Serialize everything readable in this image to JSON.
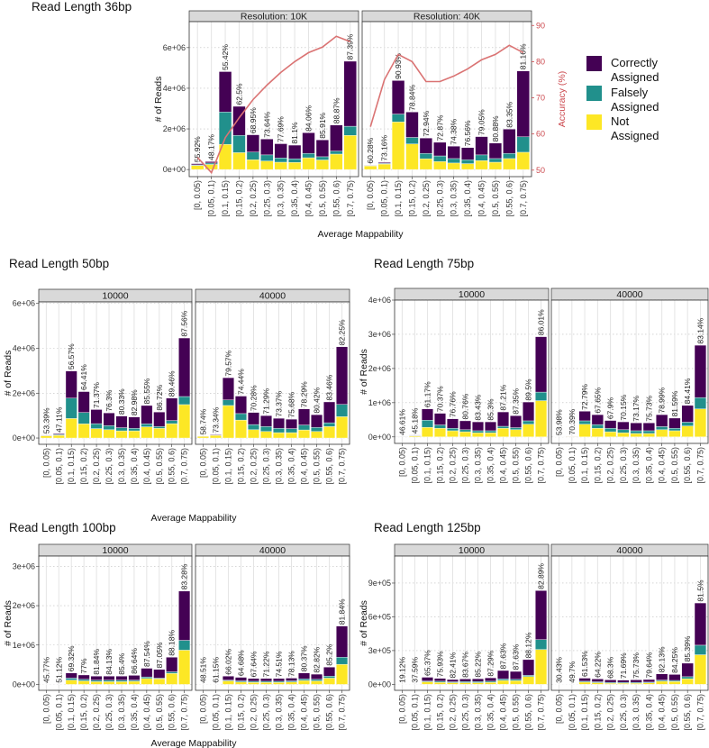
{
  "colors": {
    "correctly_assigned": "#440154",
    "falsely_assigned": "#21908C",
    "not_assigned": "#FDE725",
    "accuracy_line": "#DA7373",
    "accuracy_axis": "#CC4A4F"
  },
  "legend": {
    "items": [
      {
        "key": "correctly_assigned",
        "line1": "Correctly",
        "line2": "Assigned"
      },
      {
        "key": "falsely_assigned",
        "line1": "Falsely",
        "line2": "Assigned"
      },
      {
        "key": "not_assigned",
        "line1": "Not",
        "line2": "Assigned"
      }
    ]
  },
  "chart_data": [
    {
      "type": "bar",
      "stacked": true,
      "title": "Read Length 36bp",
      "xlabel": "Average Mappability",
      "ylabel": "# of Reads",
      "y2label": "Accuracy (%)",
      "ylim": [
        -0.35,
        7.28
      ],
      "y2lim": [
        48.2,
        91.06
      ],
      "yticks": [
        0,
        2,
        4,
        6
      ],
      "ytick_labels": [
        "0e+00",
        "2e+06",
        "4e+06",
        "6e+06"
      ],
      "y2ticks": [
        50,
        60,
        70,
        80,
        90
      ],
      "y2tick_labels": [
        "50",
        "60",
        "70",
        "80",
        "90"
      ],
      "values_in_millions": true,
      "categories": [
        "[0, 0.05)",
        "[0.05, 0.1)",
        "[0.1, 0.15)",
        "[0.15, 0.2)",
        "[0.2, 0.25)",
        "[0.25, 0.3)",
        "[0.3, 0.35)",
        "[0.35, 0.4)",
        "[0.4, 0.45)",
        "[0.5, 0.55)",
        "[0.55, 0.6)",
        "[0.7, 0.75)"
      ],
      "facets": [
        {
          "label": "Resolution: 10K",
          "not_assigned": [
            0.2,
            0.25,
            1.24,
            0.83,
            0.48,
            0.42,
            0.36,
            0.35,
            0.58,
            0.47,
            0.76,
            1.68
          ],
          "falsely_assigned": [
            0.03,
            0.07,
            1.59,
            0.85,
            0.38,
            0.3,
            0.21,
            0.18,
            0.21,
            0.16,
            0.15,
            0.45
          ],
          "correctly_assigned": [
            0.06,
            0.07,
            1.99,
            1.43,
            0.85,
            0.78,
            0.7,
            0.67,
            1.02,
            0.83,
            1.28,
            3.2
          ],
          "accuracy": [
            53.5,
            49.3,
            59,
            64.5,
            69.5,
            73.5,
            77,
            80,
            82.5,
            84,
            87,
            85.5
          ],
          "percent_labels": [
            "55.92%",
            "48.17%",
            "55.42%",
            "62.5%",
            "68.95%",
            "73.64%",
            "77.69%",
            "81.1%",
            "84.06%",
            "85.91%",
            "88.87%",
            "87.39%"
          ]
        },
        {
          "label": "Resolution: 40K",
          "not_assigned": [
            0.18,
            0.27,
            2.34,
            1.26,
            0.53,
            0.39,
            0.32,
            0.29,
            0.44,
            0.36,
            0.54,
            0.85
          ],
          "falsely_assigned": [
            0.02,
            0.03,
            0.39,
            0.32,
            0.26,
            0.28,
            0.22,
            0.19,
            0.28,
            0.18,
            0.25,
            0.76
          ],
          "correctly_assigned": [
            0.02,
            0.05,
            1.65,
            1.25,
            0.76,
            0.67,
            0.61,
            0.6,
            0.9,
            0.76,
            1.2,
            3.24
          ],
          "accuracy": [
            62,
            75,
            82,
            80,
            74.5,
            74.5,
            76,
            78,
            80.5,
            82,
            84.5,
            82.5
          ],
          "percent_labels": [
            "60.28%",
            "73.16%",
            "90.93%",
            "78.84%",
            "72.94%",
            "72.87%",
            "74.38%",
            "76.56%",
            "79.05%",
            "80.88%",
            "83.35%",
            "81.16%"
          ]
        }
      ]
    },
    {
      "type": "bar",
      "stacked": true,
      "title": "Read Length 50bp",
      "xlabel": "Average Mappability",
      "ylabel": "# of Reads",
      "ylim": [
        -0.28,
        6.07
      ],
      "yticks": [
        0,
        2,
        4,
        6
      ],
      "ytick_labels": [
        "0e+00",
        "2e+06",
        "4e+06",
        "6e+06"
      ],
      "values_in_millions": true,
      "categories": [
        "[0, 0.05)",
        "[0.05, 0.1)",
        "[0.1, 0.15)",
        "[0.15, 0.2)",
        "[0.2, 0.25)",
        "[0.25, 0.3)",
        "[0.3, 0.35)",
        "[0.35, 0.4)",
        "[0.4, 0.45)",
        "[0.5, 0.55)",
        "[0.55, 0.6)",
        "[0.7, 0.75)"
      ],
      "facets": [
        {
          "label": "10000",
          "not_assigned": [
            0.1,
            0.12,
            0.87,
            0.63,
            0.42,
            0.37,
            0.32,
            0.32,
            0.5,
            0.43,
            0.64,
            1.49
          ],
          "falsely_assigned": [
            0.01,
            0.03,
            0.91,
            0.51,
            0.22,
            0.18,
            0.14,
            0.11,
            0.13,
            0.08,
            0.14,
            0.36
          ],
          "correctly_assigned": [
            0.02,
            0.04,
            1.21,
            0.93,
            0.63,
            0.57,
            0.52,
            0.51,
            0.82,
            0.65,
            1.0,
            2.61
          ],
          "percent_labels": [
            "53.39%",
            "47.11%",
            "56.57%",
            "64.41%",
            "71.37%",
            "76.3%",
            "80.33%",
            "82.98%",
            "85.55%",
            "86.72%",
            "89.46%",
            "87.56%"
          ]
        },
        {
          "label": "40000",
          "not_assigned": [
            0.07,
            0.12,
            1.45,
            0.8,
            0.37,
            0.29,
            0.24,
            0.24,
            0.36,
            0.29,
            0.51,
            0.95
          ],
          "falsely_assigned": [
            0.005,
            0.01,
            0.25,
            0.29,
            0.23,
            0.22,
            0.19,
            0.18,
            0.22,
            0.18,
            0.17,
            0.55
          ],
          "correctly_assigned": [
            0.005,
            0.03,
            0.99,
            0.78,
            0.54,
            0.49,
            0.45,
            0.42,
            0.72,
            0.57,
            0.93,
            2.57
          ],
          "percent_labels": [
            "58.74%",
            "73.34%",
            "79.57%",
            "74.44%",
            "70.28%",
            "71.29%",
            "73.37%",
            "75.68%",
            "78.29%",
            "80.42%",
            "83.46%",
            "82.25%"
          ]
        }
      ]
    },
    {
      "type": "bar",
      "stacked": true,
      "title": "Read Length 75bp",
      "xlabel": "",
      "ylabel": "# of Reads",
      "ylim": [
        -0.19,
        4.0
      ],
      "yticks": [
        0,
        1,
        2,
        3,
        4
      ],
      "ytick_labels": [
        "0e+00",
        "1e+06",
        "2e+06",
        "3e+06",
        "4e+06"
      ],
      "values_in_millions": true,
      "categories": [
        "[0, 0.05)",
        "[0.05, 0.1)",
        "[0.1, 0.15)",
        "[0.15, 0.2)",
        "[0.2, 0.25)",
        "[0.25, 0.3)",
        "[0.3, 0.35)",
        "[0.35, 0.4)",
        "[0.4, 0.45)",
        "[0.5, 0.55)",
        "[0.55, 0.6)",
        "[0.7, 0.75)"
      ],
      "facets": [
        {
          "label": "10000",
          "not_assigned": [
            0.006,
            0.03,
            0.28,
            0.25,
            0.18,
            0.15,
            0.12,
            0.12,
            0.25,
            0.21,
            0.37,
            1.06
          ],
          "falsely_assigned": [
            0.002,
            0.01,
            0.21,
            0.1,
            0.07,
            0.06,
            0.06,
            0.06,
            0.06,
            0.06,
            0.1,
            0.25
          ],
          "correctly_assigned": [
            0.002,
            0.01,
            0.33,
            0.34,
            0.28,
            0.26,
            0.26,
            0.26,
            0.42,
            0.35,
            0.55,
            1.62
          ],
          "percent_labels": [
            "46.61%",
            "45.18%",
            "61.17%",
            "70.37%",
            "76.76%",
            "80.76%",
            "83.43%",
            "85.3%",
            "87.21%",
            "87.35%",
            "89.5%",
            "86.01%"
          ]
        },
        {
          "label": "40000",
          "not_assigned": [
            0.003,
            0.012,
            0.37,
            0.25,
            0.15,
            0.12,
            0.1,
            0.1,
            0.21,
            0.18,
            0.32,
            0.82
          ],
          "falsely_assigned": [
            0.001,
            0.004,
            0.1,
            0.11,
            0.1,
            0.09,
            0.08,
            0.08,
            0.09,
            0.07,
            0.11,
            0.33
          ],
          "correctly_assigned": [
            0.001,
            0.004,
            0.28,
            0.29,
            0.23,
            0.23,
            0.23,
            0.23,
            0.35,
            0.3,
            0.49,
            1.53
          ],
          "percent_labels": [
            "53.98%",
            "70.39%",
            "72.79%",
            "67.65%",
            "67.9%",
            "70.15%",
            "73.17%",
            "75.73%",
            "78.99%",
            "81.59%",
            "84.41%",
            "83.14%"
          ]
        }
      ]
    },
    {
      "type": "bar",
      "stacked": true,
      "title": "Read Length 100bp",
      "xlabel": "Average Mappability",
      "ylabel": "# of Reads",
      "ylim": [
        -0.15,
        3.26
      ],
      "yticks": [
        0,
        1,
        2,
        3
      ],
      "ytick_labels": [
        "0e+00",
        "1e+06",
        "2e+06",
        "3e+06"
      ],
      "values_in_millions": true,
      "categories": [
        "[0, 0.05)",
        "[0.05, 0.1)",
        "[0.1, 0.15)",
        "[0.15, 0.2)",
        "[0.2, 0.25)",
        "[0.25, 0.3)",
        "[0.3, 0.35)",
        "[0.35, 0.4)",
        "[0.4, 0.45)",
        "[0.5, 0.55)",
        "[0.55, 0.6)",
        "[0.7, 0.75)"
      ],
      "facets": [
        {
          "label": "10000",
          "not_assigned": [
            0.002,
            0.003,
            0.11,
            0.09,
            0.07,
            0.07,
            0.07,
            0.08,
            0.15,
            0.14,
            0.28,
            0.87
          ],
          "falsely_assigned": [
            0.0005,
            0.001,
            0.05,
            0.04,
            0.04,
            0.04,
            0.04,
            0.03,
            0.04,
            0.02,
            0.04,
            0.25
          ],
          "correctly_assigned": [
            0.0005,
            0.001,
            0.13,
            0.11,
            0.1,
            0.1,
            0.1,
            0.12,
            0.22,
            0.22,
            0.37,
            1.25
          ],
          "percent_labels": [
            "45.77%",
            "51.12%",
            "69.32%",
            "77%",
            "81.84%",
            "84.13%",
            "85.4%",
            "86.64%",
            "87.54%",
            "87.05%",
            "88.18%",
            "83.28%"
          ]
        },
        {
          "label": "40000",
          "not_assigned": [
            0.001,
            0.002,
            0.09,
            0.06,
            0.05,
            0.05,
            0.05,
            0.06,
            0.1,
            0.09,
            0.16,
            0.51
          ],
          "falsely_assigned": [
            0.0005,
            0.001,
            0.02,
            0.03,
            0.03,
            0.03,
            0.03,
            0.03,
            0.04,
            0.04,
            0.05,
            0.18
          ],
          "correctly_assigned": [
            0.0005,
            0.001,
            0.1,
            0.09,
            0.07,
            0.07,
            0.07,
            0.07,
            0.15,
            0.13,
            0.23,
            0.79
          ],
          "percent_labels": [
            "48.51%",
            "61.15%",
            "66.02%",
            "64.68%",
            "67.64%",
            "71.22%",
            "74.51%",
            "78.13%",
            "80.37%",
            "82.82%",
            "85.2%",
            "81.84%"
          ]
        }
      ]
    },
    {
      "type": "bar",
      "stacked": true,
      "title": "Read Length 125bp",
      "xlabel": "",
      "ylabel": "# of Reads",
      "ylim": [
        -0.053,
        1.14
      ],
      "yticks": [
        0,
        0.3,
        0.6,
        0.9
      ],
      "ytick_labels": [
        "0e+00",
        "3e+05",
        "6e+05",
        "9e+05"
      ],
      "values_in_millions": true,
      "categories": [
        "[0, 0.05)",
        "[0.05, 0.1)",
        "[0.1, 0.15)",
        "[0.15, 0.2)",
        "[0.2, 0.25)",
        "[0.25, 0.3)",
        "[0.3, 0.35)",
        "[0.35, 0.4)",
        "[0.4, 0.45)",
        "[0.5, 0.55)",
        "[0.55, 0.6)",
        "[0.7, 0.75)"
      ],
      "facets": [
        {
          "label": "10000",
          "not_assigned": [
            0.0003,
            0.0006,
            0.023,
            0.018,
            0.015,
            0.015,
            0.015,
            0.018,
            0.035,
            0.033,
            0.07,
            0.31
          ],
          "falsely_assigned": [
            0.0001,
            0.0002,
            0.007,
            0.01,
            0.008,
            0.01,
            0.01,
            0.01,
            0.013,
            0.012,
            0.01,
            0.088
          ],
          "correctly_assigned": [
            0.0001,
            0.0002,
            0.033,
            0.025,
            0.02,
            0.023,
            0.025,
            0.03,
            0.075,
            0.07,
            0.14,
            0.435
          ],
          "percent_labels": [
            "19.12%",
            "37.59%",
            "65.37%",
            "75.93%",
            "82.41%",
            "83.67%",
            "85.22%",
            "87.29%",
            "87.63%",
            "87.63%",
            "88.12%",
            "82.89%"
          ]
        },
        {
          "label": "40000",
          "not_assigned": [
            0.0002,
            0.0005,
            0.02,
            0.015,
            0.01,
            0.01,
            0.01,
            0.013,
            0.028,
            0.025,
            0.05,
            0.263
          ],
          "falsely_assigned": [
            0.0001,
            0.0002,
            0.008,
            0.008,
            0.008,
            0.008,
            0.008,
            0.007,
            0.01,
            0.01,
            0.018,
            0.085
          ],
          "correctly_assigned": [
            0.0001,
            0.0002,
            0.027,
            0.025,
            0.022,
            0.02,
            0.022,
            0.023,
            0.055,
            0.053,
            0.12,
            0.375
          ],
          "percent_labels": [
            "30.43%",
            "49.7%",
            "61.53%",
            "64.22%",
            "68.3%",
            "71.69%",
            "75.73%",
            "79.64%",
            "82.13%",
            "84.25%",
            "85.39%",
            "81.5%"
          ]
        }
      ]
    }
  ]
}
